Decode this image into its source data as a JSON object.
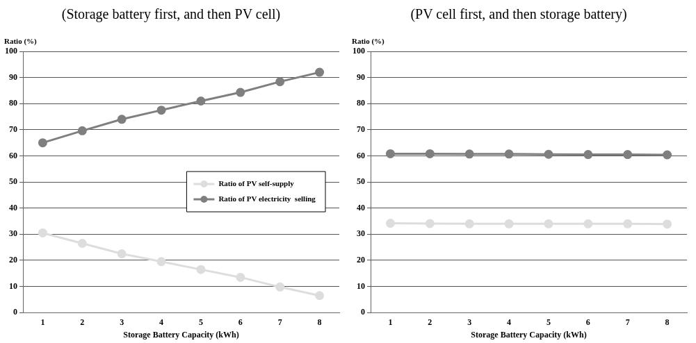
{
  "chart_data": [
    {
      "type": "line",
      "title": "(Storage battery first, and then PV cell)",
      "xlabel": "Storage Battery Capacity (kWh)",
      "ylabel": "Ratio (%)",
      "categories": [
        "1",
        "2",
        "3",
        "4",
        "5",
        "6",
        "7",
        "8"
      ],
      "series": [
        {
          "name": "Ratio of PV self-supply",
          "color": "#dddddd",
          "values": [
            30.5,
            26.5,
            22.5,
            19.5,
            16.5,
            13.5,
            9.8,
            6.5
          ]
        },
        {
          "name": "Ratio of PV electricity  selling",
          "color": "#7f7f7f",
          "values": [
            65,
            69.6,
            74,
            77.5,
            81,
            84.3,
            88.4,
            92
          ]
        }
      ],
      "ylim": [
        0,
        100
      ],
      "yticks": [
        0,
        10,
        20,
        30,
        40,
        50,
        60,
        70,
        80,
        90,
        100
      ],
      "grid": "y",
      "legend": "right",
      "marker": "circle",
      "line_style": "solid"
    },
    {
      "type": "line",
      "title": "(PV cell first, and then storage battery)",
      "xlabel": "Storage Battery Capacity (kWh)",
      "ylabel": "Ratio (%)",
      "categories": [
        "1",
        "2",
        "3",
        "4",
        "5",
        "6",
        "7",
        "8"
      ],
      "series": [
        {
          "color": "#dddddd",
          "values": [
            34.2,
            34.1,
            34,
            34,
            34,
            34,
            34,
            33.9
          ]
        },
        {
          "color": "#7f7f7f",
          "values": [
            60.8,
            60.8,
            60.7,
            60.7,
            60.6,
            60.5,
            60.5,
            60.4
          ]
        }
      ],
      "ylim": [
        0,
        100
      ],
      "yticks": [
        0,
        10,
        20,
        30,
        40,
        50,
        60,
        70,
        80,
        90,
        100
      ],
      "grid": "y",
      "marker": "circle",
      "line_style": "solid"
    }
  ]
}
